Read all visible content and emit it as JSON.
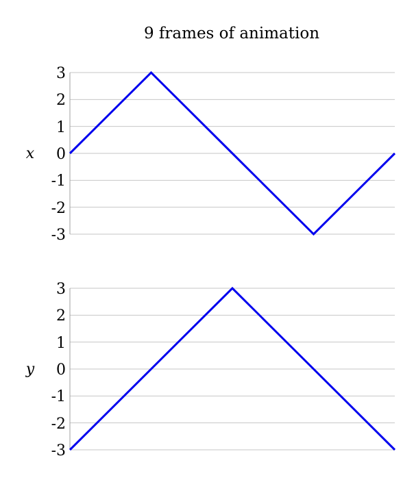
{
  "title": "9 frames of animation",
  "chart_data": [
    {
      "type": "line",
      "ylabel": "x",
      "ylim": [
        -3,
        3
      ],
      "yticks": [
        "3",
        "2",
        "1",
        "0",
        "-1",
        "-2",
        "-3"
      ],
      "grid": true,
      "x": [
        0,
        1,
        2,
        3,
        4
      ],
      "series": [
        {
          "values": [
            0,
            3,
            0,
            -3,
            0
          ],
          "color": "#0000ee"
        }
      ]
    },
    {
      "type": "line",
      "ylabel": "y",
      "ylim": [
        -3,
        3
      ],
      "yticks": [
        "3",
        "2",
        "1",
        "0",
        "-1",
        "-2",
        "-3"
      ],
      "grid": true,
      "x": [
        0,
        2,
        4
      ],
      "series": [
        {
          "values": [
            -3,
            3,
            -3
          ],
          "color": "#0000ee"
        }
      ]
    }
  ]
}
